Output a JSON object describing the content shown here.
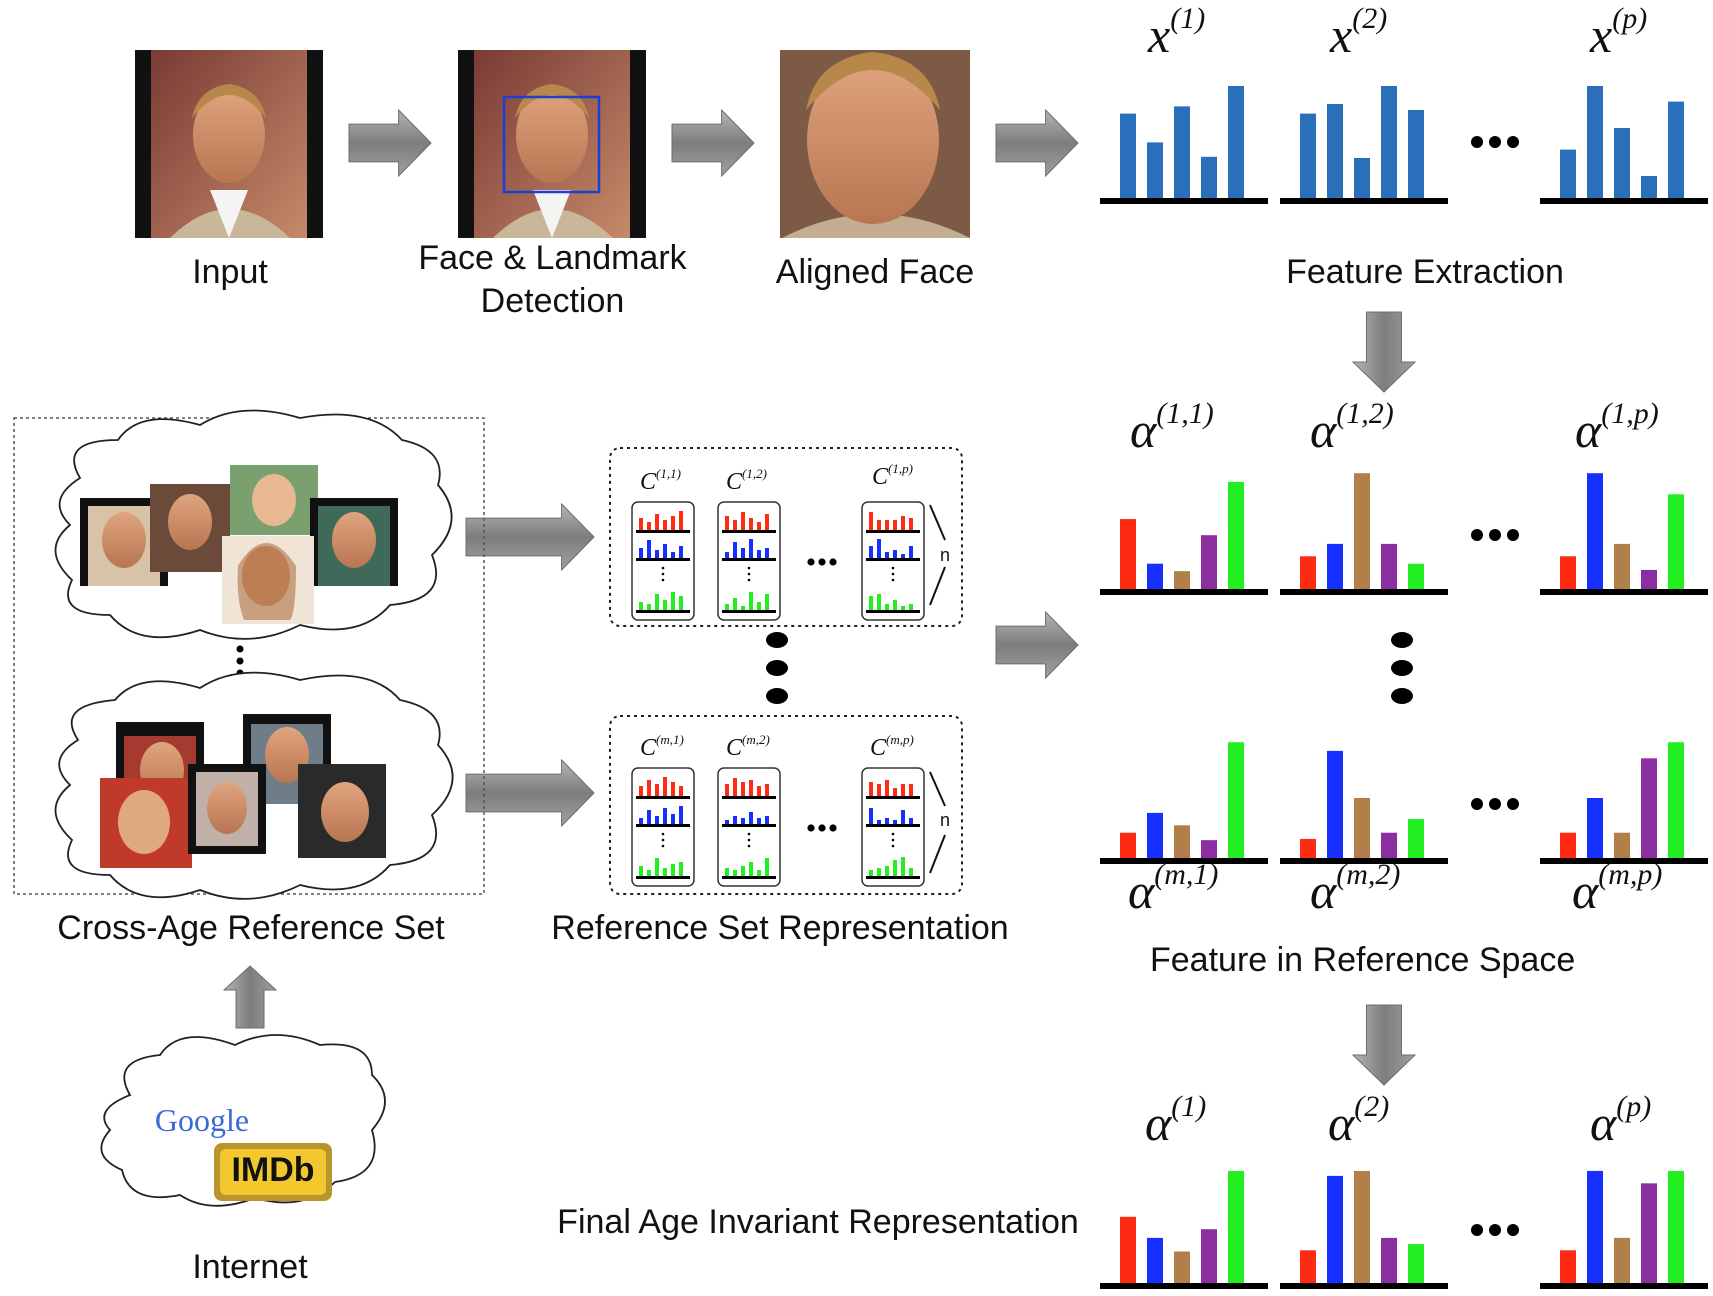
{
  "pipeline": {
    "input_label": "Input",
    "detection_label_line1": "Face & Landmark",
    "detection_label_line2": "Detection",
    "aligned_label": "Aligned Face",
    "feature_extraction_label": "Feature Extraction"
  },
  "reference": {
    "cross_age_label": "Cross-Age Reference Set",
    "representation_label": "Reference Set Representation",
    "feature_in_reference_label": "Feature in Reference Space",
    "side_n": "n"
  },
  "internet": {
    "google": "Google",
    "imdb": "IMDb",
    "label": "Internet"
  },
  "final": {
    "label": "Final Age Invariant Representation"
  },
  "math": {
    "x": "x",
    "alpha": "α",
    "c": "C",
    "x1": "(1)",
    "x2": "(2)",
    "xp": "(p)",
    "a11": "(1,1)",
    "a12": "(1,2)",
    "a1p": "(1,p)",
    "am1": "(m,1)",
    "am2": "(m,2)",
    "amp": "(m,p)",
    "f1": "(1)",
    "f2": "(2)",
    "fp": "(p)",
    "c11": "(1,1)",
    "c12": "(1,2)",
    "c1p": "(1,p)",
    "cm1": "(m,1)",
    "cm2": "(m,2)",
    "cmp": "(m,p)"
  },
  "colors": {
    "blue_bar": "#2a6fba",
    "red": "#ff2a12",
    "blue": "#1530ff",
    "brown": "#b07f4a",
    "purple": "#8b2fa0",
    "green": "#22ee22",
    "arrow": "#8a8a8a"
  },
  "icons": [
    "right-arrow-icon",
    "down-arrow-icon",
    "up-arrow-icon",
    "cloud-icon",
    "ellipsis-icon",
    "vertical-dots-icon"
  ]
}
